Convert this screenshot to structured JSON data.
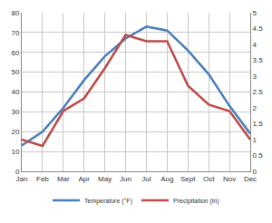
{
  "chart_data": {
    "type": "line",
    "categories": [
      "Jan",
      "Feb",
      "Mar",
      "Apr",
      "May",
      "Jun",
      "Jul",
      "Aug",
      "Sept",
      "Oct",
      "Nov",
      "Dec"
    ],
    "series": [
      {
        "name": "Temperature (°F)",
        "color": "#4a7ebb",
        "values": [
          13,
          20,
          32,
          46,
          58,
          67,
          73,
          71,
          61,
          49,
          33,
          19
        ]
      },
      {
        "name": "Precipitation (in)",
        "color": "#be4b48",
        "axis": "y2",
        "values": [
          1.0,
          0.8,
          1.9,
          2.3,
          3.25,
          4.3,
          4.1,
          4.1,
          2.7,
          2.1,
          1.9,
          1.0
        ]
      }
    ],
    "ylim": [
      0,
      80
    ],
    "yticks": [
      0,
      10,
      20,
      30,
      40,
      50,
      60,
      70,
      80
    ],
    "y2lim": [
      0,
      5
    ],
    "y2ticks": [
      0,
      0.5,
      1,
      1.5,
      2,
      2.5,
      3,
      3.5,
      4,
      4.5,
      5
    ],
    "grid": true,
    "legend": "bottom"
  }
}
